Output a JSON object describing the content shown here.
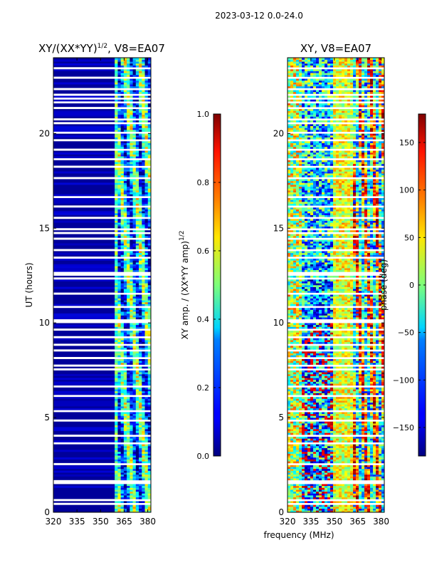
{
  "figure_title": "2023-03-12 0.0-24.0",
  "shared_xlabel": "frequency (MHz)",
  "chart_data": [
    {
      "type": "heatmap",
      "title": "XY/(XX*YY)",
      "title_superscript": "1/2",
      "title_suffix": ", V8=EA07",
      "xlabel": "",
      "ylabel": "UT (hours)",
      "xlim": [
        320,
        382
      ],
      "ylim": [
        0,
        24
      ],
      "xticks": [
        320,
        335,
        350,
        365,
        380
      ],
      "yticks": [
        0,
        5,
        10,
        15,
        20
      ],
      "colorbar": {
        "label": "XY amp. / (XX*YY amp)",
        "label_superscript": "1/2",
        "range": [
          0.0,
          1.0
        ],
        "ticks": [
          "0.0",
          "0.2",
          "0.4",
          "0.6",
          "0.8",
          "1.0"
        ],
        "colormap": "jet"
      },
      "description_bands": [
        {
          "freq_range": [
            320,
            359
          ],
          "value_level": 0.05
        },
        {
          "freq_range": [
            359,
            382
          ],
          "value_level": 0.45
        }
      ]
    },
    {
      "type": "heatmap",
      "title": "XY",
      "title_suffix": ", V8=EA07",
      "xlabel": "frequency (MHz)",
      "ylabel": "",
      "xlim": [
        320,
        382
      ],
      "ylim": [
        0,
        24
      ],
      "xticks": [
        320,
        335,
        350,
        365,
        380
      ],
      "yticks": [
        0,
        5,
        10,
        15,
        20
      ],
      "colorbar": {
        "label": "phase (deg)",
        "range": [
          -180,
          180
        ],
        "ticks": [
          "−150",
          "−100",
          "−50",
          "0",
          "50",
          "100",
          "150"
        ],
        "colormap": "jet"
      }
    }
  ],
  "gap_rows_ut": [
    0.35,
    0.55,
    1.45,
    1.55,
    2.45,
    3.55,
    3.95,
    4.75,
    5.25,
    6.05,
    6.55,
    7.45,
    7.65,
    8.05,
    8.45,
    8.75,
    9.15,
    9.55,
    9.95,
    10.05,
    10.75,
    11.45,
    12.25,
    12.45,
    12.55,
    13.35,
    13.75,
    14.35,
    14.65,
    14.85,
    15.45,
    16.05,
    16.55,
    17.55,
    18.15,
    18.55,
    19.05,
    19.55,
    19.95,
    20.45,
    20.65,
    21.25,
    21.55,
    21.75,
    21.95,
    22.25,
    22.85,
    23.35
  ]
}
